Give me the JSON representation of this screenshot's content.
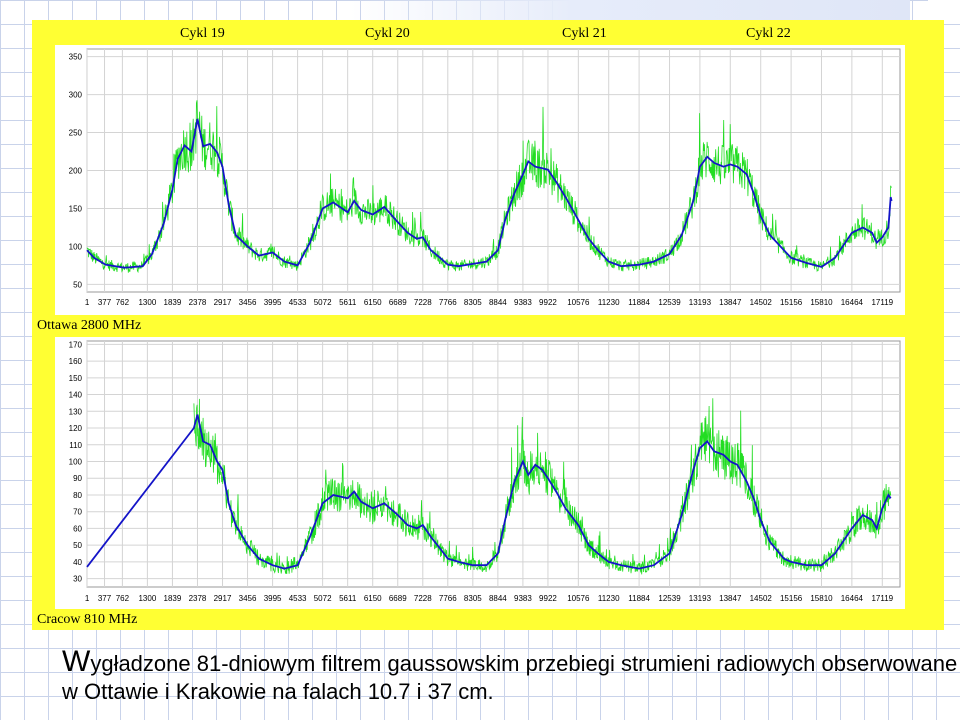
{
  "cycles": [
    "Cykl  19",
    "Cykl  20",
    "Cykl  21",
    "Cykl  22"
  ],
  "caption": {
    "initial": "W",
    "rest": "ygładzone 81-dniowym filtrem gaussowskim przebiegi strumieni radiowych obserwowane w Ottawie i Krakowie na falach 10.7  i 37 cm."
  },
  "colors": {
    "panel": "#ffff33",
    "raw": "#22dd22",
    "smoothed": "#1414c8"
  },
  "chart_data": [
    {
      "type": "line",
      "station_label": "Ottawa   2800  MHz",
      "x_ticks": [
        1,
        377,
        762,
        1300,
        1839,
        2378,
        2917,
        3456,
        3995,
        4533,
        5072,
        5611,
        6150,
        6689,
        7228,
        7766,
        8305,
        8844,
        9383,
        9922,
        10576,
        11230,
        11884,
        12539,
        13193,
        13847,
        14502,
        15156,
        15810,
        16464,
        17119
      ],
      "x_tick_labels": [
        "1",
        "377",
        "762",
        "1300",
        "1839",
        "2378",
        "2917",
        "3456",
        "3995",
        "4533",
        "5072",
        "5611",
        "6150",
        "6689",
        "7228",
        "7766",
        "8305",
        "8844",
        "9383",
        "9922",
        "10576",
        "11230",
        "11884",
        "12539",
        "13193",
        "13847",
        "14502",
        "15156",
        "15810",
        "16464",
        "17119"
      ],
      "y_ticks": [
        50,
        100,
        150,
        200,
        250,
        300,
        350
      ],
      "ylim": [
        40,
        360
      ],
      "xlim": [
        0,
        17500
      ],
      "grid": true,
      "series": [
        {
          "x": [
            0,
            150,
            400,
            800,
            1200,
            1400,
            1650,
            1839,
            1950,
            2100,
            2250,
            2378,
            2500,
            2650,
            2800,
            2917,
            3050,
            3200,
            3456,
            3700,
            3995,
            4250,
            4533,
            4800,
            5072,
            5300,
            5611,
            5750,
            5900,
            6150,
            6400,
            6689,
            6900,
            7100,
            7228,
            7400,
            7600,
            7766,
            8000,
            8305,
            8600,
            8844,
            9000,
            9200,
            9383,
            9500,
            9650,
            9800,
            9922,
            10100,
            10300,
            10576,
            10800,
            11000,
            11230,
            11500,
            11884,
            12200,
            12539,
            12800,
            13050,
            13193,
            13350,
            13500,
            13700,
            13847,
            14000,
            14200,
            14350,
            14502,
            14700,
            15000,
            15156,
            15500,
            15810,
            16100,
            16464,
            16700,
            16900,
            17000,
            17119,
            17250,
            17300,
            17320
          ],
          "y": [
            95,
            85,
            76,
            72,
            74,
            90,
            130,
            175,
            215,
            233,
            225,
            268,
            232,
            235,
            224,
            205,
            155,
            115,
            100,
            88,
            92,
            80,
            75,
            105,
            150,
            158,
            145,
            160,
            148,
            142,
            152,
            132,
            118,
            110,
            112,
            95,
            85,
            76,
            74,
            77,
            80,
            95,
            135,
            170,
            195,
            212,
            205,
            203,
            201,
            185,
            165,
            135,
            110,
            95,
            80,
            74,
            76,
            80,
            90,
            115,
            160,
            205,
            218,
            210,
            205,
            208,
            205,
            195,
            170,
            140,
            115,
            95,
            85,
            78,
            73,
            85,
            118,
            125,
            118,
            105,
            112,
            125,
            165,
            160
          ]
        }
      ]
    },
    {
      "type": "line",
      "station_label": "Cracow  810  MHz",
      "x_ticks": [
        1,
        377,
        762,
        1300,
        1839,
        2378,
        2917,
        3456,
        3995,
        4533,
        5072,
        5611,
        6150,
        6689,
        7228,
        7766,
        8305,
        8844,
        9383,
        9922,
        10576,
        11230,
        11884,
        12539,
        13193,
        13847,
        14502,
        15156,
        15810,
        16464,
        17119
      ],
      "x_tick_labels": [
        "1",
        "377",
        "762",
        "1300",
        "1839",
        "2378",
        "2917",
        "3456",
        "3995",
        "4533",
        "5072",
        "5611",
        "6150",
        "6689",
        "7228",
        "7766",
        "8305",
        "8844",
        "9383",
        "9922",
        "10576",
        "11230",
        "11884",
        "12539",
        "13193",
        "13847",
        "14502",
        "15156",
        "15810",
        "16464",
        "17119"
      ],
      "y_ticks": [
        30,
        40,
        50,
        60,
        70,
        80,
        90,
        100,
        110,
        120,
        130,
        140,
        150,
        160,
        170
      ],
      "ylim": [
        25,
        172
      ],
      "xlim": [
        0,
        17500
      ],
      "grid": true,
      "series": [
        {
          "x": [
            0,
            2300,
            2378,
            2500,
            2650,
            2800,
            2917,
            3050,
            3200,
            3456,
            3700,
            3995,
            4250,
            4533,
            4800,
            5072,
            5300,
            5611,
            5750,
            5900,
            6150,
            6400,
            6689,
            6900,
            7100,
            7228,
            7400,
            7600,
            7766,
            8000,
            8305,
            8600,
            8844,
            9000,
            9200,
            9383,
            9500,
            9650,
            9800,
            9922,
            10100,
            10300,
            10576,
            10800,
            11000,
            11230,
            11500,
            11884,
            12200,
            12539,
            12800,
            13050,
            13193,
            13350,
            13500,
            13700,
            13847,
            14000,
            14200,
            14350,
            14502,
            14700,
            15000,
            15156,
            15500,
            15810,
            16100,
            16464,
            16700,
            16900,
            17000,
            17119,
            17250,
            17300
          ],
          "y": [
            37,
            120,
            128,
            112,
            110,
            100,
            95,
            75,
            62,
            50,
            42,
            38,
            36,
            38,
            55,
            75,
            80,
            78,
            82,
            76,
            72,
            75,
            68,
            62,
            60,
            62,
            55,
            48,
            42,
            40,
            38,
            38,
            45,
            65,
            88,
            100,
            92,
            98,
            95,
            90,
            82,
            72,
            62,
            50,
            45,
            40,
            38,
            36,
            38,
            45,
            68,
            95,
            108,
            112,
            106,
            104,
            100,
            98,
            88,
            78,
            65,
            52,
            42,
            40,
            38,
            38,
            45,
            60,
            68,
            65,
            60,
            72,
            80,
            78
          ]
        }
      ]
    }
  ]
}
